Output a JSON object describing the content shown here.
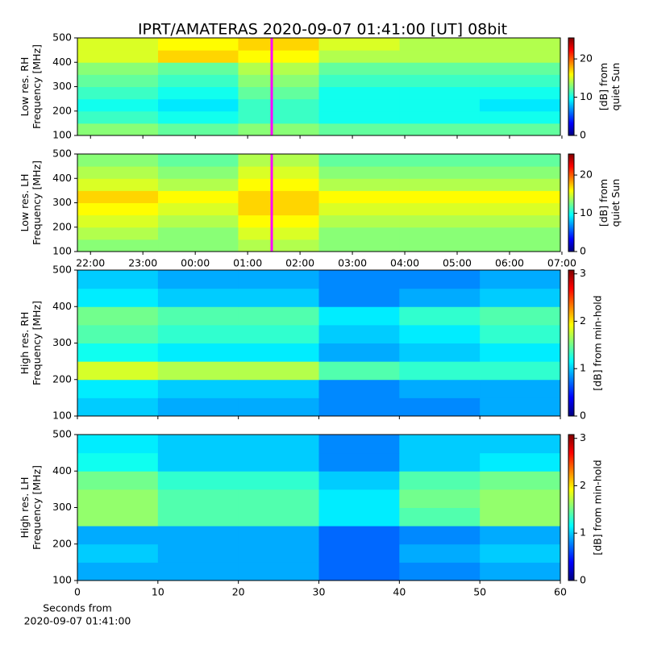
{
  "chart_data": [
    {
      "type": "heatmap",
      "title": "IPRT/AMATERAS 2020-09-07 01:41:00 [UT]   08bit",
      "colormap": "jet",
      "ylabel": [
        "Low res. RH",
        "Frequency [MHz]"
      ],
      "clabel": [
        "[dB] from",
        "quiet Sun"
      ],
      "xlim": [
        21.75,
        30.97
      ],
      "ylim": [
        100,
        500
      ],
      "yticks": [
        100,
        200,
        300,
        400,
        500
      ],
      "clim": [
        0,
        25.5
      ],
      "cticks": [
        0,
        10,
        20
      ],
      "marker_x": 25.46,
      "marker_color": "#ff00ff",
      "x_bins": [
        21.75,
        23.29,
        24.82,
        26.36,
        27.9,
        29.43,
        30.97
      ],
      "y_bins": [
        100,
        150,
        200,
        250,
        300,
        350,
        400,
        450,
        500
      ],
      "z": [
        [
          13,
          12,
          13,
          12,
          12,
          12
        ],
        [
          11,
          10,
          11,
          10,
          10,
          10
        ],
        [
          10,
          9,
          11,
          10,
          10,
          9
        ],
        [
          11,
          10,
          12,
          10,
          10,
          10
        ],
        [
          12,
          11,
          13,
          11,
          11,
          11
        ],
        [
          13,
          12,
          14,
          12,
          12,
          12
        ],
        [
          15,
          17,
          16,
          14,
          14,
          14
        ],
        [
          15,
          16,
          17,
          15,
          14,
          14
        ]
      ]
    },
    {
      "type": "heatmap",
      "colormap": "jet",
      "ylabel": [
        "Low res. LH",
        "Frequency [MHz]"
      ],
      "clabel": [
        "[dB] from",
        "quiet Sun"
      ],
      "xlim": [
        21.75,
        30.97
      ],
      "ylim": [
        100,
        500
      ],
      "yticks": [
        100,
        200,
        300,
        400,
        500
      ],
      "xticks": [
        {
          "value": 22,
          "label": "22:00"
        },
        {
          "value": 23,
          "label": "23:00"
        },
        {
          "value": 24,
          "label": "00:00"
        },
        {
          "value": 25,
          "label": "01:00"
        },
        {
          "value": 26,
          "label": "02:00"
        },
        {
          "value": 27,
          "label": "03:00"
        },
        {
          "value": 28,
          "label": "04:00"
        },
        {
          "value": 29,
          "label": "05:00"
        },
        {
          "value": 30,
          "label": "06:00"
        },
        {
          "value": 31,
          "label": "07:00"
        }
      ],
      "clim": [
        0,
        25.5
      ],
      "cticks": [
        0,
        10,
        20
      ],
      "marker_x": 25.46,
      "marker_color": "#ff00ff",
      "x_bins": [
        21.75,
        23.29,
        24.82,
        26.36,
        27.9,
        29.43,
        30.97
      ],
      "y_bins": [
        100,
        150,
        200,
        250,
        300,
        350,
        400,
        450,
        500
      ],
      "z": [
        [
          13,
          13,
          14,
          13,
          13,
          13
        ],
        [
          14,
          13,
          15,
          13,
          13,
          13
        ],
        [
          15,
          14,
          16,
          14,
          14,
          14
        ],
        [
          16,
          15,
          17,
          15,
          15,
          15
        ],
        [
          17,
          16,
          17,
          16,
          16,
          16
        ],
        [
          15,
          14,
          16,
          14,
          14,
          14
        ],
        [
          14,
          13,
          15,
          13,
          13,
          13
        ],
        [
          13,
          12,
          14,
          12,
          12,
          12
        ]
      ]
    },
    {
      "type": "heatmap",
      "colormap": "jet",
      "ylabel": [
        "High res. RH",
        "Frequency [MHz]"
      ],
      "clabel": [
        "[dB] from min-hold"
      ],
      "xlim": [
        0,
        60
      ],
      "ylim": [
        100,
        500
      ],
      "yticks": [
        100,
        200,
        300,
        400,
        500
      ],
      "clim": [
        0,
        3.08
      ],
      "cticks": [
        0,
        1,
        2,
        3
      ],
      "x_bins": [
        0,
        10,
        20,
        30,
        40,
        50,
        60
      ],
      "y_bins": [
        100,
        150,
        200,
        250,
        300,
        350,
        400,
        450,
        500
      ],
      "z": [
        [
          1.0,
          0.9,
          0.9,
          0.8,
          0.8,
          0.9
        ],
        [
          1.1,
          1.0,
          1.0,
          0.8,
          0.9,
          0.9
        ],
        [
          1.8,
          1.7,
          1.7,
          1.4,
          1.3,
          1.3
        ],
        [
          1.2,
          1.1,
          1.1,
          0.9,
          1.0,
          1.1
        ],
        [
          1.4,
          1.3,
          1.3,
          1.0,
          1.1,
          1.3
        ],
        [
          1.5,
          1.4,
          1.4,
          1.1,
          1.3,
          1.4
        ],
        [
          1.1,
          1.0,
          1.0,
          0.8,
          0.9,
          1.0
        ],
        [
          1.0,
          0.9,
          0.9,
          0.8,
          0.8,
          0.9
        ]
      ]
    },
    {
      "type": "heatmap",
      "colormap": "jet",
      "ylabel": [
        "High res. LH",
        "Frequency [MHz]"
      ],
      "clabel": [
        "[dB] from min-hold"
      ],
      "xlabel": [
        "Seconds from",
        "2020-09-07 01:41:00"
      ],
      "xlim": [
        0,
        60
      ],
      "ylim": [
        100,
        500
      ],
      "yticks": [
        100,
        200,
        300,
        400,
        500
      ],
      "xticks": [
        0,
        10,
        20,
        30,
        40,
        50,
        60
      ],
      "clim": [
        0,
        3.08
      ],
      "cticks": [
        0,
        1,
        2,
        3
      ],
      "x_bins": [
        0,
        10,
        20,
        30,
        40,
        50,
        60
      ],
      "y_bins": [
        100,
        150,
        200,
        250,
        300,
        350,
        400,
        450,
        500
      ],
      "z": [
        [
          0.9,
          0.9,
          0.9,
          0.7,
          0.8,
          0.9
        ],
        [
          1.0,
          0.9,
          0.9,
          0.7,
          0.9,
          1.0
        ],
        [
          0.9,
          0.9,
          0.9,
          0.7,
          0.8,
          0.9
        ],
        [
          1.6,
          1.4,
          1.4,
          1.1,
          1.4,
          1.6
        ],
        [
          1.6,
          1.4,
          1.4,
          1.1,
          1.5,
          1.6
        ],
        [
          1.5,
          1.3,
          1.3,
          1.0,
          1.4,
          1.5
        ],
        [
          1.2,
          1.0,
          1.0,
          0.8,
          1.0,
          1.1
        ],
        [
          1.1,
          1.0,
          1.0,
          0.8,
          1.0,
          1.0
        ]
      ]
    }
  ]
}
